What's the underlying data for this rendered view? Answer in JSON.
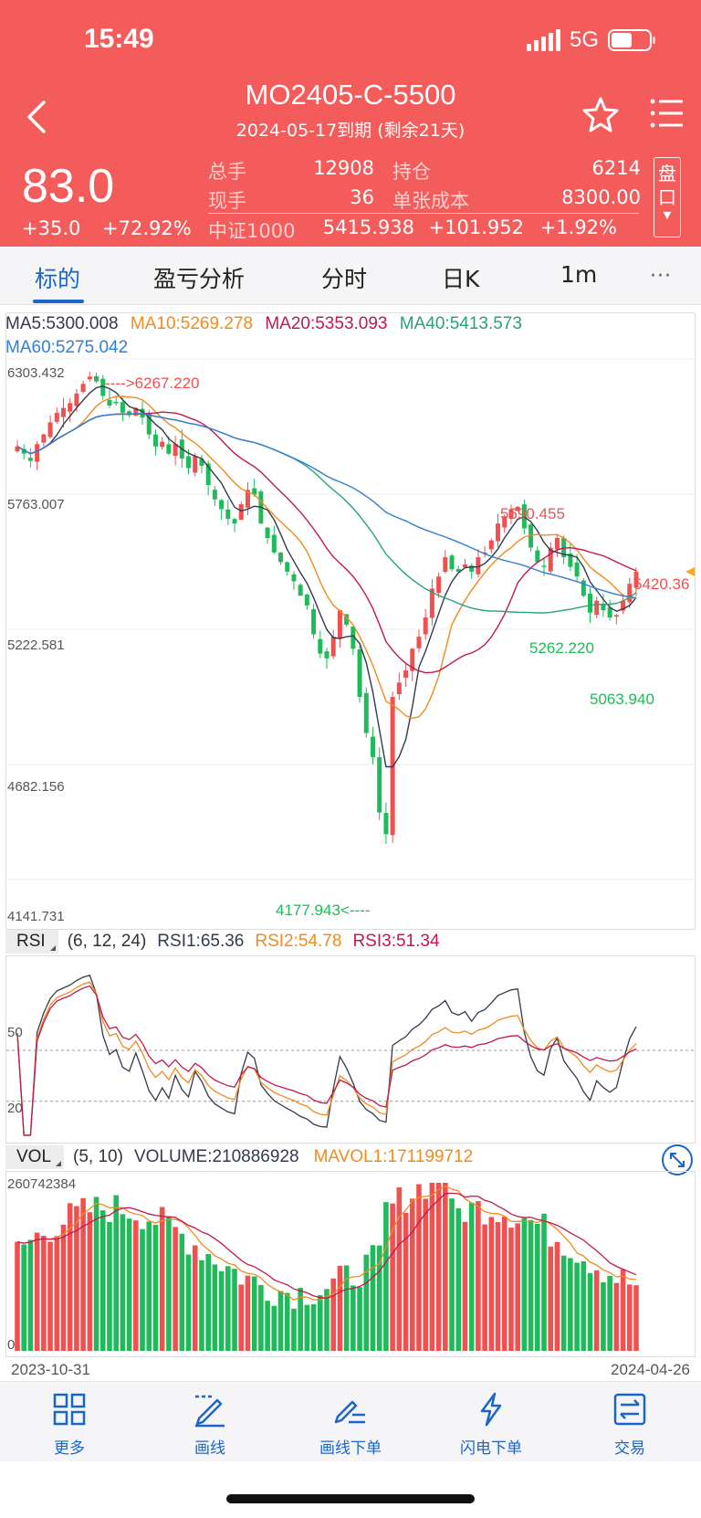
{
  "status_bar": {
    "time": "15:49",
    "network": "5G"
  },
  "header": {
    "title": "MO2405-C-5500",
    "subtitle": "2024-05-17到期 (剩余21天)",
    "price": "83.0",
    "change": "+35.0",
    "change_pct": "+72.92%",
    "stats": [
      {
        "label": "总手",
        "value": "12908"
      },
      {
        "label": "持仓",
        "value": "6214"
      },
      {
        "label": "现手",
        "value": "36"
      },
      {
        "label": "单张成本",
        "value": "8300.00"
      }
    ],
    "underlying": {
      "label": "中证1000",
      "value": "5415.938",
      "change": "+101.952",
      "change_pct": "+1.92%"
    },
    "pankou_label": [
      "盘",
      "口"
    ]
  },
  "tabs": [
    "标的",
    "盈亏分析",
    "分时",
    "日K",
    "1m"
  ],
  "active_tab": 0,
  "more_label": "···",
  "ma_legend": {
    "ma5": "MA5:5300.008",
    "ma10": "MA10:5269.278",
    "ma20": "MA20:5353.093",
    "ma40": "MA40:5413.573",
    "ma60": "MA60:5275.042"
  },
  "colors": {
    "header_bg": "#f45b5b",
    "up": "#f05050",
    "down": "#1fba59",
    "ma5": "#333a4d",
    "ma10": "#f28a1c",
    "ma20": "#c2184e",
    "ma40": "#27a27a",
    "ma60": "#2f7fd6",
    "accent": "#1a66c8"
  },
  "chart_data": [
    {
      "type": "candlestick",
      "y_ticks": [
        "6303.432",
        "5763.007",
        "5222.581",
        "4682.156",
        "4141.731"
      ],
      "ylim": [
        4141.731,
        6303.432
      ],
      "x_range": [
        "2023-10-31",
        "2024-04-26"
      ],
      "annotations": {
        "high": "---->6267.220",
        "low": "4177.943<----",
        "local_high": "5690.455",
        "local_low_1": "5262.220",
        "local_low_2": "5063.940",
        "last": "5420.36"
      },
      "close": [
        5940,
        5910,
        5880,
        5950,
        5990,
        6040,
        6080,
        6100,
        6120,
        6160,
        6200,
        6230,
        6210,
        6150,
        6110,
        6120,
        6080,
        6070,
        6100,
        6060,
        5990,
        5940,
        5960,
        5910,
        5950,
        5890,
        5850,
        5900,
        5860,
        5780,
        5720,
        5680,
        5640,
        5620,
        5700,
        5760,
        5740,
        5620,
        5560,
        5500,
        5460,
        5420,
        5380,
        5320,
        5280,
        5160,
        5080,
        5060,
        5150,
        5260,
        5200,
        5100,
        4900,
        4750,
        4650,
        4420,
        4330,
        4900,
        4960,
        5010,
        5100,
        5150,
        5230,
        5350,
        5400,
        5480,
        5430,
        5420,
        5450,
        5420,
        5480,
        5500,
        5550,
        5620,
        5650,
        5680,
        5690,
        5600,
        5520,
        5460,
        5440,
        5520,
        5560,
        5480,
        5440,
        5400,
        5320,
        5250,
        5300,
        5260,
        5230,
        5240,
        5300,
        5370,
        5420
      ]
    },
    {
      "type": "line",
      "name": "RSI",
      "params": "(6, 12, 24)",
      "rsi1": "RSI1:65.36",
      "rsi2": "RSI2:54.78",
      "rsi3": "RSI3:51.34",
      "levels": [
        "50",
        "20"
      ]
    },
    {
      "type": "bar",
      "name": "VOL",
      "params": "(5, 10)",
      "volume": "VOLUME:210886928",
      "mavol1": "MAVOL1:171199712",
      "ymax_label": "260742384",
      "ymin_label": "0",
      "ylim": [
        0,
        260742384
      ]
    }
  ],
  "dates": {
    "start": "2023-10-31",
    "end": "2024-04-26"
  },
  "toolbar": [
    {
      "label": "更多",
      "icon": "grid-icon"
    },
    {
      "label": "画线",
      "icon": "draw-line-icon"
    },
    {
      "label": "画线下单",
      "icon": "draw-order-icon"
    },
    {
      "label": "闪电下单",
      "icon": "lightning-icon"
    },
    {
      "label": "交易",
      "icon": "trade-icon"
    }
  ]
}
